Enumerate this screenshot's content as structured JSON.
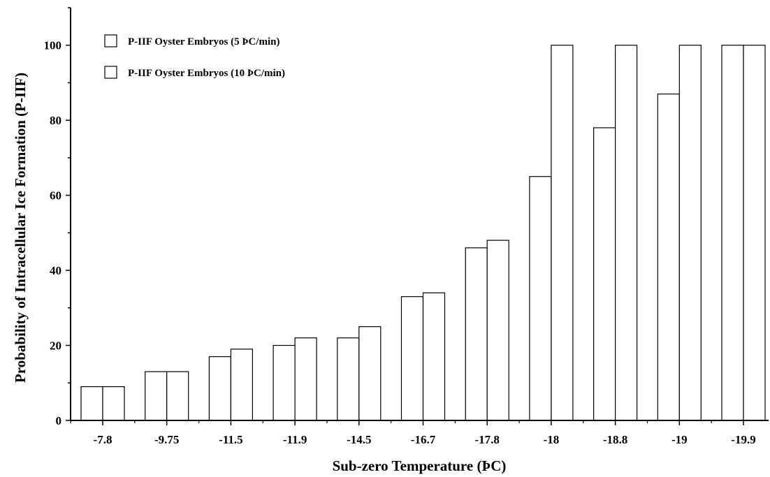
{
  "chart_data": {
    "type": "bar",
    "xlabel": "Sub-zero Temperature (ÞC)",
    "ylabel": "Probability of Intracellular Ice Formation (P-IIF)",
    "categories": [
      "-7.8",
      "-9.75",
      "-11.5",
      "-11.9",
      "-14.5",
      "-16.7",
      "-17.8",
      "-18",
      "-18.8",
      "-19",
      "-19.9"
    ],
    "series": [
      {
        "name": "P-IIF Oyster Embryos (5 ÞC/min)",
        "values": [
          9,
          13,
          17,
          20,
          22,
          33,
          46,
          65,
          78,
          87,
          100
        ]
      },
      {
        "name": "P-IIF Oyster Embryos (10 ÞC/min)",
        "values": [
          9,
          13,
          19,
          22,
          25,
          34,
          48,
          100,
          100,
          100,
          100
        ]
      }
    ],
    "ylim": [
      0,
      110
    ],
    "yticks": [
      0,
      20,
      40,
      60,
      80,
      100
    ],
    "legend_position": "top-left",
    "grid": false,
    "bar_fill": "#ffffff",
    "bar_stroke": "#000000"
  }
}
